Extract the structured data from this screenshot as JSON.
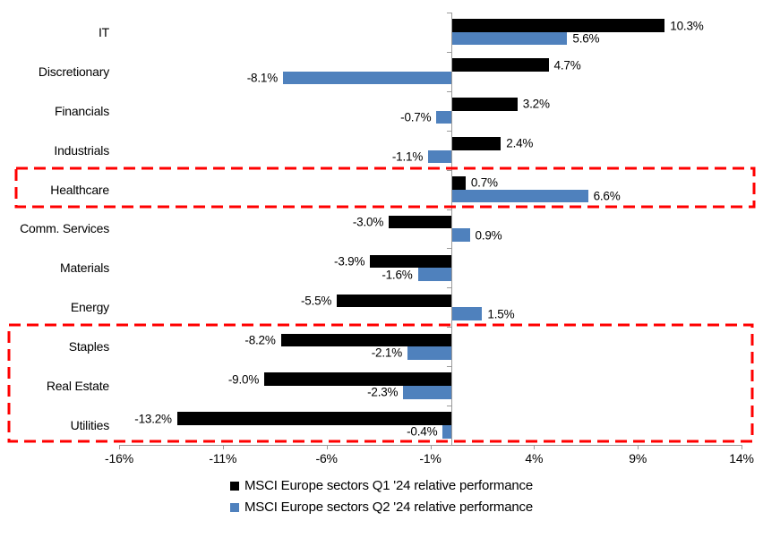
{
  "chart_data": {
    "type": "bar",
    "orientation": "horizontal",
    "title": "",
    "categories": [
      "IT",
      "Discretionary",
      "Financials",
      "Industrials",
      "Healthcare",
      "Comm. Services",
      "Materials",
      "Energy",
      "Staples",
      "Real Estate",
      "Utilities"
    ],
    "series": [
      {
        "name": "MSCI Europe sectors Q1 '24 relative performance",
        "color": "#000000",
        "values": [
          10.3,
          4.7,
          3.2,
          2.4,
          0.7,
          -3.0,
          -3.9,
          -5.5,
          -8.2,
          -9.0,
          -13.2
        ],
        "labels": [
          "10.3%",
          "4.7%",
          "3.2%",
          "2.4%",
          "0.7%",
          "-3.0%",
          "-3.9%",
          "-5.5%",
          "-8.2%",
          "-9.0%",
          "-13.2%"
        ]
      },
      {
        "name": "MSCI Europe sectors Q2 '24 relative performance",
        "color": "#4F81BD",
        "values": [
          5.6,
          -8.1,
          -0.7,
          -1.1,
          6.6,
          0.9,
          -1.6,
          1.5,
          -2.1,
          -2.3,
          -0.4
        ],
        "labels": [
          "5.6%",
          "-8.1%",
          "-0.7%",
          "-1.1%",
          "6.6%",
          "0.9%",
          "-1.6%",
          "1.5%",
          "-2.1%",
          "-2.3%",
          "-0.4%"
        ]
      }
    ],
    "x_axis": {
      "tick_labels": [
        "-16%",
        "-11%",
        "-6%",
        "-1%",
        "4%",
        "9%",
        "14%"
      ],
      "tick_values": [
        -16,
        -11,
        -6,
        -1,
        4,
        9,
        14
      ],
      "range": [
        -16,
        14
      ],
      "grid": false
    },
    "legend_position": "bottom",
    "axis_color": "#9b9b9b",
    "highlight_boxes": [
      {
        "name": "healthcare-highlight",
        "rows": [
          "Healthcare"
        ],
        "color": "#FF0000"
      },
      {
        "name": "defensives-highlight",
        "rows": [
          "Staples",
          "Real Estate",
          "Utilities"
        ],
        "color": "#FF0000"
      }
    ]
  }
}
